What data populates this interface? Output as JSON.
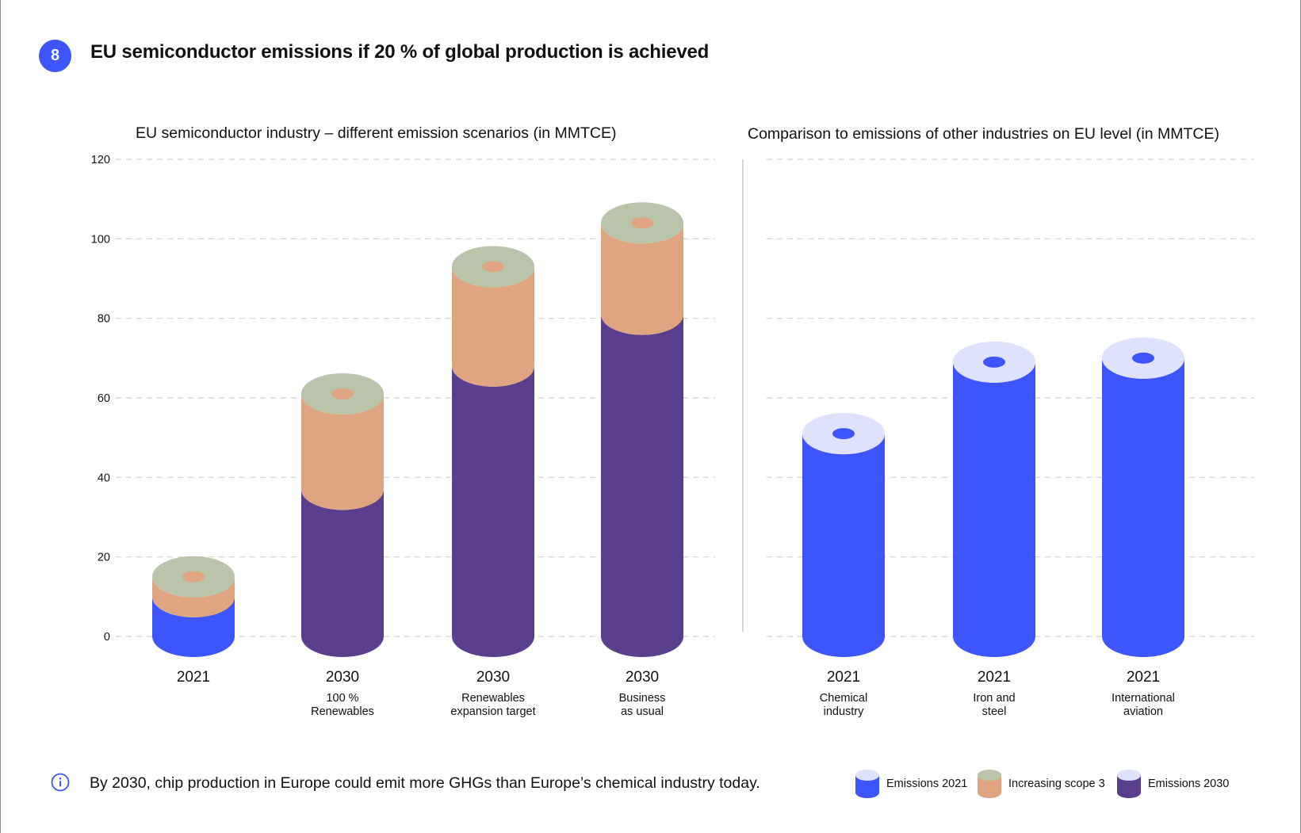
{
  "header": {
    "badge_number": "8",
    "title": "EU semiconductor emissions if 20 % of global production is achieved"
  },
  "colors": {
    "emissions_2021": "#3d55fb",
    "emissions_2021_top": "#dfe2fd",
    "scope3": "#dfa581",
    "scope3_top": "#bac4ab",
    "emissions_2030": "#5a3f8f",
    "grid": "#d4d4c2",
    "divider": "#d8d8c8",
    "accent": "#3d55fb"
  },
  "footer": {
    "info_text": "By 2030, chip production in Europe could emit more GHGs than Europe’s chemical industry today."
  },
  "legend": [
    {
      "label": "Emissions 2021",
      "key": "emissions_2021"
    },
    {
      "label": "Increasing scope 3",
      "key": "scope3"
    },
    {
      "label": "Emissions 2030",
      "key": "emissions_2030"
    }
  ],
  "chart_data": [
    {
      "type": "bar",
      "stacked": true,
      "title": "EU semiconductor industry – different emission scenarios (in MMTCE)",
      "xlabel": "",
      "ylabel": "MMTCE",
      "ylim": [
        0,
        120
      ],
      "yticks": [
        0,
        20,
        40,
        60,
        80,
        100,
        120
      ],
      "grid": true,
      "categories": [
        {
          "year": "2021",
          "label": ""
        },
        {
          "year": "2030",
          "label": "100 %\nRenewables"
        },
        {
          "year": "2030",
          "label": "Renewables\nexpansion target"
        },
        {
          "year": "2030",
          "label": "Business\nas usual"
        }
      ],
      "series": [
        {
          "name": "Emissions 2021",
          "key": "emissions_2021",
          "values": [
            10,
            0,
            0,
            0
          ]
        },
        {
          "name": "Emissions 2030",
          "key": "emissions_2030",
          "values": [
            0,
            37,
            68,
            81
          ]
        },
        {
          "name": "Increasing scope 3",
          "key": "scope3",
          "values": [
            5,
            24,
            25,
            23
          ]
        }
      ],
      "totals": [
        15,
        61,
        93,
        104
      ]
    },
    {
      "type": "bar",
      "title": "Comparison to emissions of other industries on EU level  (in MMTCE)",
      "xlabel": "",
      "ylabel": "MMTCE",
      "ylim": [
        0,
        120
      ],
      "grid": true,
      "categories": [
        {
          "year": "2021",
          "label": "Chemical\nindustry"
        },
        {
          "year": "2021",
          "label": "Iron and\nsteel"
        },
        {
          "year": "2021",
          "label": "International\naviation"
        }
      ],
      "series": [
        {
          "name": "Emissions 2021",
          "key": "emissions_2021",
          "values": [
            51,
            69,
            70
          ]
        }
      ]
    }
  ]
}
